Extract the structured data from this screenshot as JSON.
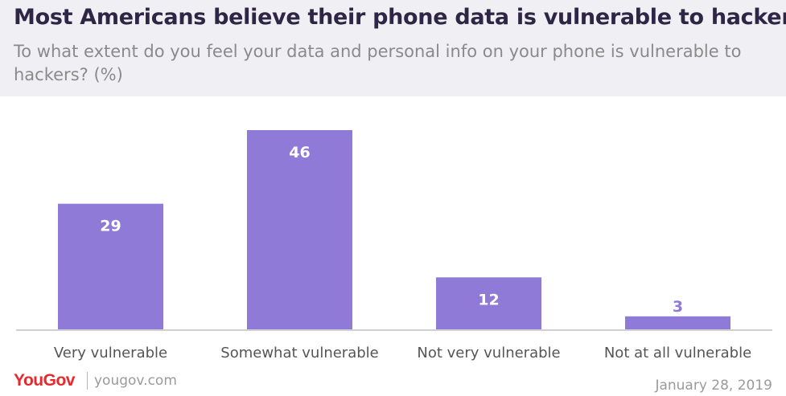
{
  "title": "Most Americans believe their phone data is vulnerable to hackers",
  "subtitle": "To what extent do you feel your data and personal info on your phone is vulnerable to hackers? (%)",
  "footer": {
    "brand": "YouGov",
    "site": "yougov.com",
    "date": "January 28, 2019"
  },
  "colors": {
    "bar": "#8f7ad7",
    "label_inside": "#ffffff",
    "label_outside": "#8f7ad7",
    "header_bg": "#f0f0f4",
    "brand": "#e6292e"
  },
  "chart_data": {
    "type": "bar",
    "title": "Most Americans believe their phone data is vulnerable to hackers",
    "xlabel": "",
    "ylabel": "",
    "categories": [
      "Very vulnerable",
      "Somewhat vulnerable",
      "Not very vulnerable",
      "Not at all vulnerable"
    ],
    "values": [
      29,
      46,
      12,
      3
    ],
    "data_labels": [
      "29",
      "46",
      "12",
      "3"
    ],
    "ylim": [
      0,
      46
    ],
    "grid": false,
    "legend": "none"
  }
}
